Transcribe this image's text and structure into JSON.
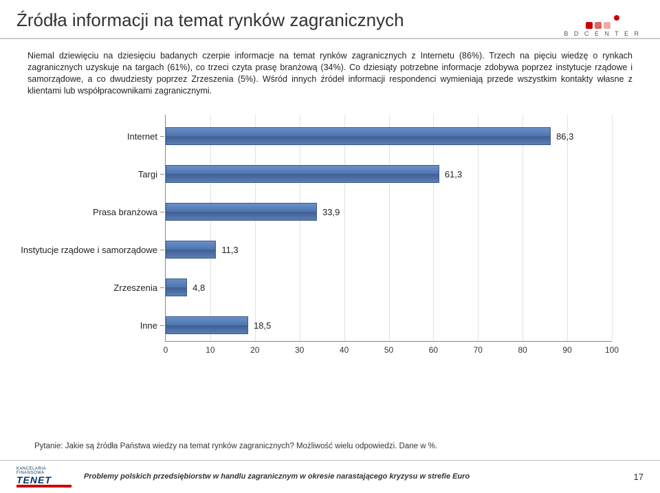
{
  "header": {
    "title": "Źródła informacji na temat rynków zagranicznych",
    "logo_text": "B D  C E N T E R"
  },
  "paragraph": "Niemal dziewięciu na dziesięciu badanych czerpie informacje na temat rynków zagranicznych z Internetu (86%). Trzech na pięciu wiedzę o rynkach zagranicznych uzyskuje na targach (61%), co trzeci czyta prasę branżową (34%). Co dziesiąty potrzebne informacje zdobywa poprzez instytucje rządowe i samorządowe, a co dwudziesty poprzez Zrzeszenia (5%). Wśród innych źródeł informacji respondenci wymieniają przede wszystkim kontakty własne z klientami lub współpracownikami zagranicznymi.",
  "chart": {
    "type": "bar",
    "orientation": "horizontal",
    "xlim": [
      0,
      100
    ],
    "xtick_step": 10,
    "xticks": [
      0,
      10,
      20,
      30,
      40,
      50,
      60,
      70,
      80,
      90,
      100
    ],
    "background_color": "#ffffff",
    "grid_color": "#888888",
    "axis_color": "#888888",
    "bar_fill_top": "#6a8fc8",
    "bar_fill_mid": "#4f76b0",
    "bar_fill_low": "#3f5f94",
    "bar_border": "#3a5a8a",
    "label_fontsize": 13,
    "value_fontsize": 13,
    "items": [
      {
        "label": "Internet",
        "value": 86.3,
        "display": "86,3"
      },
      {
        "label": "Targi",
        "value": 61.3,
        "display": "61,3"
      },
      {
        "label": "Prasa branżowa",
        "value": 33.9,
        "display": "33,9"
      },
      {
        "label": "Instytucje rządowe i samorządowe",
        "value": 11.3,
        "display": "11,3"
      },
      {
        "label": "Zrzeszenia",
        "value": 4.8,
        "display": "4,8"
      },
      {
        "label": "Inne",
        "value": 18.5,
        "display": "18,5"
      }
    ]
  },
  "question": "Pytanie: Jakie są źródła Państwa wiedzy na temat rynków zagranicznych? Możliwość wielu odpowiedzi. Dane w %.",
  "footer": {
    "logo_small": "KANCELARIA FINANSOWA",
    "logo_name": "TENET",
    "text": "Problemy polskich przedsiębiorstw w handlu zagranicznym w okresie narastającego kryzysu w strefie Euro",
    "page": "17"
  }
}
